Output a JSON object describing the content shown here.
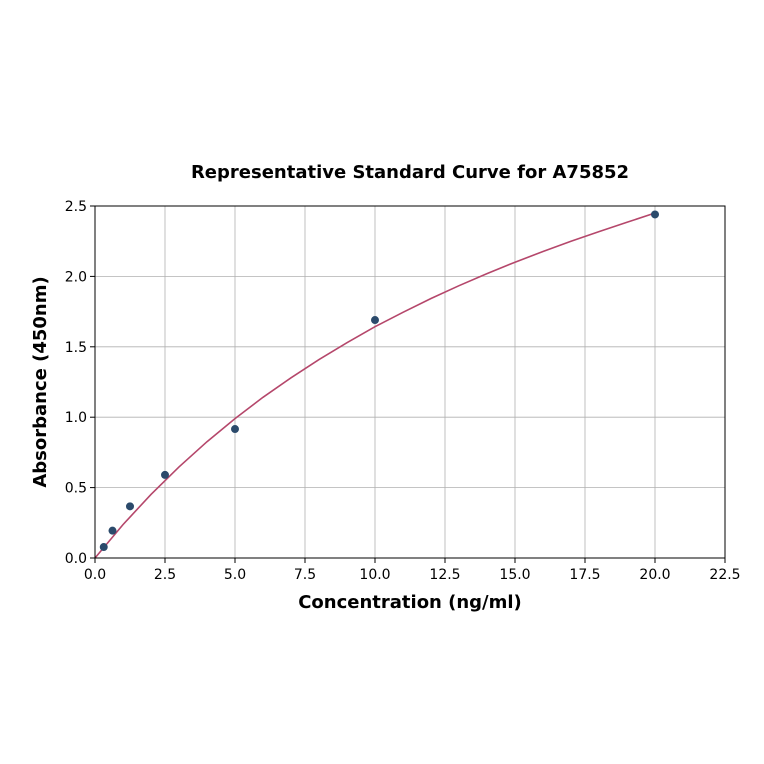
{
  "chart_data": {
    "type": "scatter",
    "title": "Representative Standard Curve for A75852",
    "xlabel": "Concentration (ng/ml)",
    "ylabel": "Absorbance (450nm)",
    "xlim": [
      0,
      22.5
    ],
    "ylim": [
      0,
      2.5
    ],
    "xticks": [
      "0.0",
      "2.5",
      "5.0",
      "7.5",
      "10.0",
      "12.5",
      "15.0",
      "17.5",
      "20.0",
      "22.5"
    ],
    "yticks": [
      "0.0",
      "0.5",
      "1.0",
      "1.5",
      "2.0",
      "2.5"
    ],
    "grid": true,
    "series": [
      {
        "x": [
          0.3125,
          0.625,
          1.25,
          2.5,
          5,
          10,
          20
        ],
        "y": [
          0.078,
          0.194,
          0.367,
          0.59,
          0.916,
          1.69,
          2.44
        ],
        "color": "#2b4a6b"
      }
    ],
    "fit_curve": {
      "color": "#b5476b",
      "x": [
        0,
        1,
        2,
        3,
        4,
        5,
        6,
        7,
        8,
        9,
        10,
        11,
        12,
        13,
        14,
        15,
        16,
        17,
        18,
        19,
        20
      ],
      "y": [
        0,
        0.237,
        0.452,
        0.647,
        0.826,
        0.99,
        1.141,
        1.28,
        1.409,
        1.529,
        1.643,
        1.745,
        1.843,
        1.934,
        2.02,
        2.101,
        2.177,
        2.25,
        2.318,
        2.384,
        2.45
      ]
    }
  }
}
